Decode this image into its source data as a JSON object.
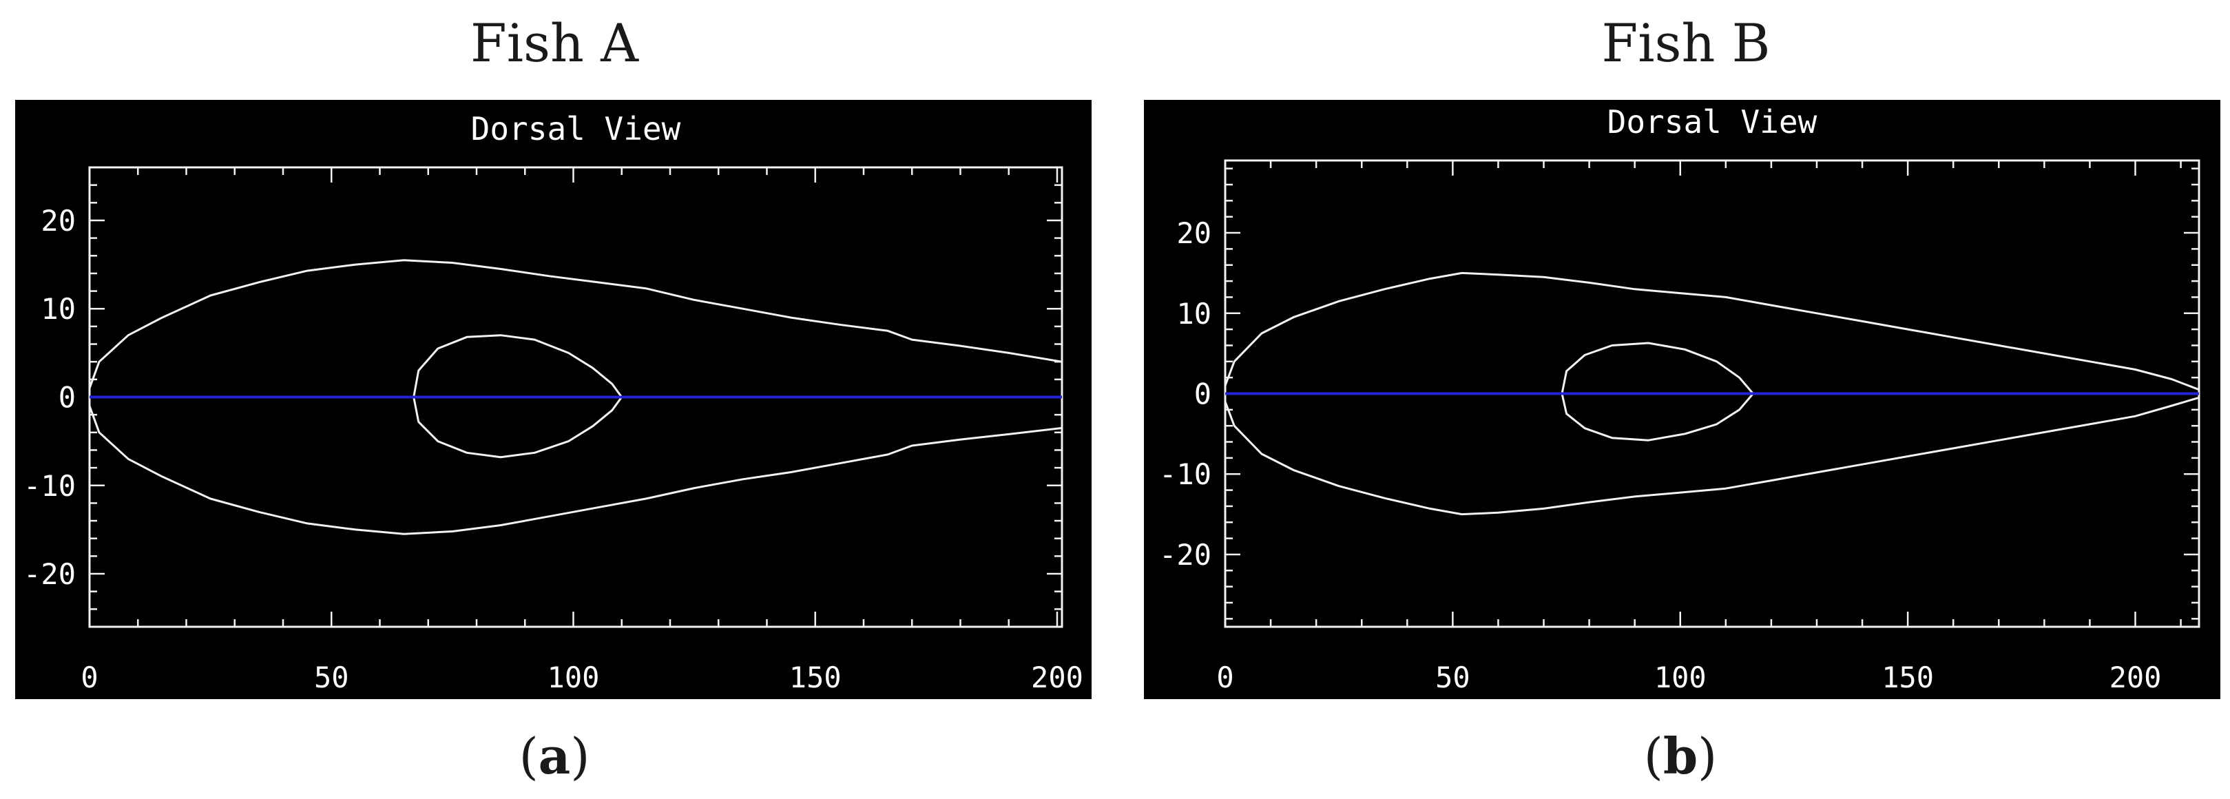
{
  "figure": {
    "title_a": "Fish A",
    "title_b": "Fish B",
    "label_a": "a",
    "label_b": "b"
  },
  "colors": {
    "background": "#000000",
    "outline": "#f2f2f2",
    "midline": "#2424d6"
  },
  "chart_data": [
    {
      "type": "line",
      "title": "Dorsal View",
      "xlabel": "",
      "ylabel": "",
      "xlim": [
        0,
        201
      ],
      "ylim": [
        -26,
        26
      ],
      "x_ticks": [
        0,
        50,
        100,
        150,
        200
      ],
      "y_ticks": [
        -20,
        -10,
        0,
        10,
        20
      ],
      "grid": false,
      "series": [
        {
          "role": "body-outline-upper",
          "x": [
            0,
            2,
            8,
            15,
            25,
            35,
            45,
            55,
            65,
            75,
            85,
            95,
            105,
            115,
            125,
            135,
            145,
            155,
            165,
            170,
            180,
            190,
            201
          ],
          "y": [
            1,
            4,
            7,
            9,
            11.5,
            13,
            14.3,
            15,
            15.5,
            15.2,
            14.5,
            13.7,
            13,
            12.3,
            11,
            10,
            9,
            8.2,
            7.5,
            6.5,
            5.8,
            5,
            4
          ]
        },
        {
          "role": "body-outline-lower",
          "x": [
            0,
            2,
            8,
            15,
            25,
            35,
            45,
            55,
            65,
            75,
            85,
            95,
            105,
            115,
            125,
            135,
            145,
            155,
            165,
            170,
            180,
            190,
            201
          ],
          "y": [
            -1,
            -4,
            -7,
            -9,
            -11.5,
            -13,
            -14.3,
            -15,
            -15.5,
            -15.2,
            -14.5,
            -13.5,
            -12.5,
            -11.5,
            -10.3,
            -9.3,
            -8.5,
            -7.5,
            -6.5,
            -5.5,
            -4.8,
            -4.2,
            -3.5
          ]
        },
        {
          "role": "swimbladder-outline",
          "x": [
            67,
            68,
            72,
            78,
            85,
            92,
            99,
            104,
            108,
            110,
            108,
            104,
            99,
            92,
            85,
            78,
            72,
            68,
            67
          ],
          "y": [
            0,
            3,
            5.5,
            6.8,
            7,
            6.5,
            5,
            3.3,
            1.5,
            0,
            -1.5,
            -3.3,
            -5,
            -6.3,
            -6.8,
            -6.3,
            -5,
            -2.8,
            0
          ]
        },
        {
          "role": "midline",
          "x": [
            0,
            201
          ],
          "y": [
            0,
            0
          ]
        }
      ]
    },
    {
      "type": "line",
      "title": "Dorsal View",
      "xlabel": "",
      "ylabel": "",
      "xlim": [
        0,
        214
      ],
      "ylim": [
        -29,
        29
      ],
      "x_ticks": [
        0,
        50,
        100,
        150,
        200
      ],
      "y_ticks": [
        -20,
        -10,
        0,
        10,
        20
      ],
      "grid": false,
      "series": [
        {
          "role": "body-outline-upper",
          "x": [
            0,
            2,
            8,
            15,
            25,
            35,
            45,
            52,
            60,
            70,
            80,
            90,
            100,
            110,
            120,
            130,
            140,
            150,
            160,
            170,
            180,
            190,
            200,
            208,
            214
          ],
          "y": [
            1,
            4,
            7.5,
            9.5,
            11.5,
            13,
            14.3,
            15,
            14.8,
            14.5,
            13.8,
            13,
            12.5,
            12,
            11,
            10,
            9,
            8,
            7,
            6,
            5,
            4,
            3,
            1.8,
            0.5
          ]
        },
        {
          "role": "body-outline-lower",
          "x": [
            0,
            2,
            8,
            15,
            25,
            35,
            45,
            52,
            60,
            70,
            80,
            90,
            100,
            110,
            120,
            130,
            140,
            150,
            160,
            170,
            180,
            190,
            200,
            208,
            214
          ],
          "y": [
            -1,
            -4,
            -7.5,
            -9.5,
            -11.5,
            -13,
            -14.3,
            -15,
            -14.8,
            -14.3,
            -13.5,
            -12.8,
            -12.3,
            -11.8,
            -10.8,
            -9.8,
            -8.8,
            -7.8,
            -6.8,
            -5.8,
            -4.8,
            -3.8,
            -2.8,
            -1.5,
            -0.5
          ]
        },
        {
          "role": "swimbladder-outline",
          "x": [
            74,
            75,
            79,
            85,
            93,
            101,
            108,
            113,
            116,
            113,
            108,
            101,
            93,
            85,
            79,
            75,
            74
          ],
          "y": [
            0,
            2.8,
            4.8,
            6,
            6.3,
            5.5,
            4,
            2,
            0,
            -2,
            -3.8,
            -5,
            -5.8,
            -5.5,
            -4.3,
            -2.5,
            0
          ]
        },
        {
          "role": "midline",
          "x": [
            0,
            214
          ],
          "y": [
            0,
            0
          ]
        }
      ]
    }
  ]
}
